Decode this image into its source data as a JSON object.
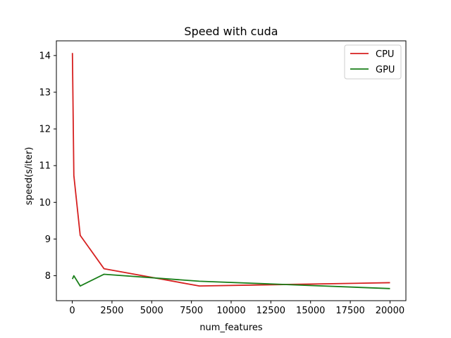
{
  "chart_data": {
    "type": "line",
    "title": "Speed with cuda",
    "xlabel": "num_features",
    "ylabel": "speed(s/iter)",
    "xlim": [
      -1000,
      21000
    ],
    "ylim": [
      7.32,
      14.4
    ],
    "xticks": [
      0,
      2500,
      5000,
      7500,
      10000,
      12500,
      15000,
      17500,
      20000
    ],
    "yticks": [
      8,
      9,
      10,
      11,
      12,
      13,
      14
    ],
    "grid": false,
    "legend_position": "top-right",
    "series": [
      {
        "name": "CPU",
        "color": "#d62020",
        "x": [
          10,
          100,
          500,
          2000,
          8000,
          20000
        ],
        "y": [
          14.07,
          10.73,
          9.1,
          8.19,
          7.72,
          7.81
        ]
      },
      {
        "name": "GPU",
        "color": "#1a7f1a",
        "x": [
          10,
          100,
          500,
          2000,
          8000,
          20000
        ],
        "y": [
          7.91,
          8.0,
          7.72,
          8.04,
          7.85,
          7.65
        ]
      }
    ]
  }
}
